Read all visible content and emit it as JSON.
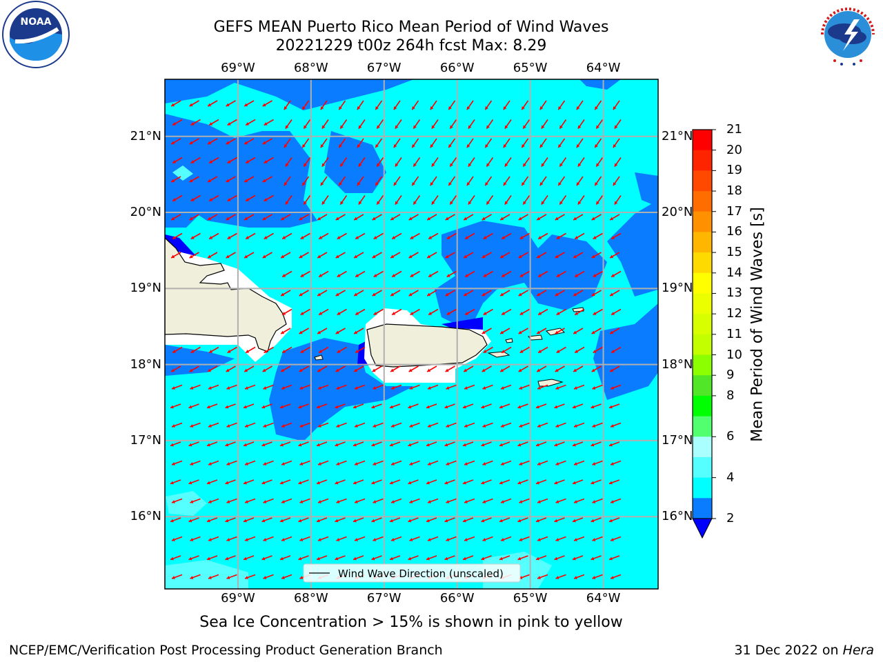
{
  "title": {
    "line1": "GEFS MEAN Puerto Rico Mean Period of Wind Waves",
    "line2": "20221229 t00z 264h fcst   Max: 8.29"
  },
  "map": {
    "lon_labels": [
      "69°W",
      "68°W",
      "67°W",
      "66°W",
      "65°W",
      "64°W"
    ],
    "lat_labels": [
      "21°N",
      "20°N",
      "19°N",
      "18°N",
      "17°N",
      "16°N"
    ],
    "lon_range": [
      -70.0,
      -63.25
    ],
    "lat_range": [
      15.05,
      21.75
    ],
    "legend_label": "Wind Wave Direction (unscaled)",
    "arrow_color": "#ff0000",
    "land_color": "#efefdc",
    "fill_levels": {
      "2-4": "#0a7cff",
      "4-6": "#00ffff"
    }
  },
  "colorbar": {
    "label": "Mean Period of Wind Waves [s]",
    "ticks": [
      "21",
      "20",
      "19",
      "18",
      "17",
      "16",
      "15",
      "14",
      "13",
      "12",
      "11",
      "10",
      "9",
      "8",
      "6",
      "4",
      "2"
    ],
    "colors": [
      "#ff0000",
      "#ff2400",
      "#ff4800",
      "#ff6d00",
      "#ff9100",
      "#ffb600",
      "#ffda00",
      "#ffff00",
      "#ecff00",
      "#d8ff00",
      "#c4ff00",
      "#8cff00",
      "#52e629",
      "#00ff00",
      "#52ff6e",
      "#aaffff",
      "#55ffff",
      "#00ffff",
      "#0a7cff"
    ],
    "under_color": "#0000ff"
  },
  "note": "Sea Ice Concentration > 15% is shown in pink to yellow",
  "footer": {
    "left": "NCEP/EMC/Verification Post Processing Product Generation Branch",
    "date": "31 Dec 2022 on ",
    "machine": "Hera"
  },
  "logos": {
    "noaa_text": "NOAA",
    "nws_text": "NATIONAL WEATHER SERVICE",
    "noaa_ring": "NATIONAL OCEANIC AND ATMOSPHERIC ADMINISTRATION"
  }
}
